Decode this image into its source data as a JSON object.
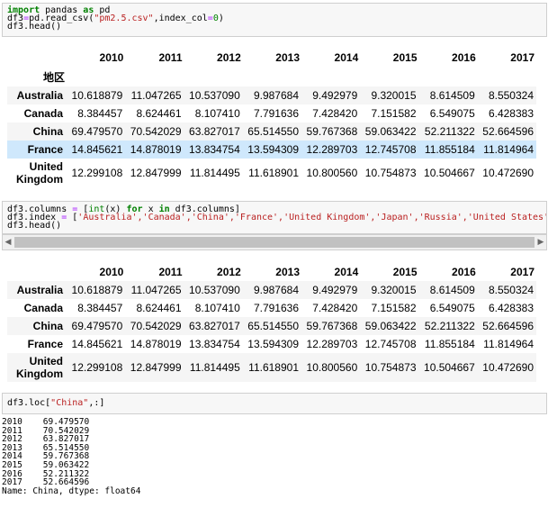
{
  "cell1": {
    "line1_kw1": "import",
    "line1_mod": " pandas ",
    "line1_kw2": "as",
    "line1_alias": " pd",
    "line2_a": "df3",
    "line2_eq": "=",
    "line2_b": "pd.read_csv(",
    "line2_str": "\"pm2.5.csv\"",
    "line2_c": ",index_col",
    "line2_eq2": "=",
    "line2_num": "0",
    "line2_d": ")",
    "line3": "df3.head()"
  },
  "cell2": {
    "line1_a": "df3.columns ",
    "line1_eq": "=",
    "line1_b": " [",
    "line1_int": "int",
    "line1_c": "(x) ",
    "line1_for": "for",
    "line1_d": " x ",
    "line1_in": "in",
    "line1_e": " df3.columns]",
    "line2_a": "df3.index ",
    "line2_eq": "=",
    "line2_b": " [",
    "line2_str": "'Australia','Canada','China','France','United Kingdom','Japan','Russia','United States'",
    "line3": "df3.head()"
  },
  "cell3": {
    "code_a": "df3.loc[",
    "code_str": "\"China\"",
    "code_b": ",:]"
  },
  "table1": {
    "index_name": "地区",
    "columns": [
      "2010",
      "2011",
      "2012",
      "2013",
      "2014",
      "2015",
      "2016",
      "2017"
    ],
    "rows": [
      {
        "index": "Australia",
        "values": [
          "10.618879",
          "11.047265",
          "10.537090",
          "9.987684",
          "9.492979",
          "9.320015",
          "8.614509",
          "8.550324"
        ]
      },
      {
        "index": "Canada",
        "values": [
          "8.384457",
          "8.624461",
          "8.107410",
          "7.791636",
          "7.428420",
          "7.151582",
          "6.549075",
          "6.428383"
        ]
      },
      {
        "index": "China",
        "values": [
          "69.479570",
          "70.542029",
          "63.827017",
          "65.514550",
          "59.767368",
          "59.063422",
          "52.211322",
          "52.664596"
        ]
      },
      {
        "index": "France",
        "values": [
          "14.845621",
          "14.878019",
          "13.834754",
          "13.594309",
          "12.289703",
          "12.745708",
          "11.855184",
          "11.814964"
        ]
      },
      {
        "index_l1": "United",
        "index_l2": "Kingdom",
        "values": [
          "12.299108",
          "12.847999",
          "11.814495",
          "11.618901",
          "10.800560",
          "10.754873",
          "10.504667",
          "10.472690"
        ]
      }
    ]
  },
  "table2": {
    "columns": [
      "2010",
      "2011",
      "2012",
      "2013",
      "2014",
      "2015",
      "2016",
      "2017"
    ],
    "rows": [
      {
        "index": "Australia",
        "values": [
          "10.618879",
          "11.047265",
          "10.537090",
          "9.987684",
          "9.492979",
          "9.320015",
          "8.614509",
          "8.550324"
        ]
      },
      {
        "index": "Canada",
        "values": [
          "8.384457",
          "8.624461",
          "8.107410",
          "7.791636",
          "7.428420",
          "7.151582",
          "6.549075",
          "6.428383"
        ]
      },
      {
        "index": "China",
        "values": [
          "69.479570",
          "70.542029",
          "63.827017",
          "65.514550",
          "59.767368",
          "59.063422",
          "52.211322",
          "52.664596"
        ]
      },
      {
        "index": "France",
        "values": [
          "14.845621",
          "14.878019",
          "13.834754",
          "13.594309",
          "12.289703",
          "12.745708",
          "11.855184",
          "11.814964"
        ]
      },
      {
        "index_l1": "United",
        "index_l2": "Kingdom",
        "values": [
          "12.299108",
          "12.847999",
          "11.814495",
          "11.618901",
          "10.800560",
          "10.754873",
          "10.504667",
          "10.472690"
        ]
      }
    ]
  },
  "series_output": {
    "lines": [
      "2010    69.479570",
      "2011    70.542029",
      "2012    63.827017",
      "2013    65.514550",
      "2014    59.767368",
      "2015    59.063422",
      "2016    52.211322",
      "2017    52.664596"
    ],
    "footer": "Name: China, dtype: float64"
  },
  "scrollbar": {
    "left_arrow": "◀",
    "right_arrow": "▶"
  }
}
